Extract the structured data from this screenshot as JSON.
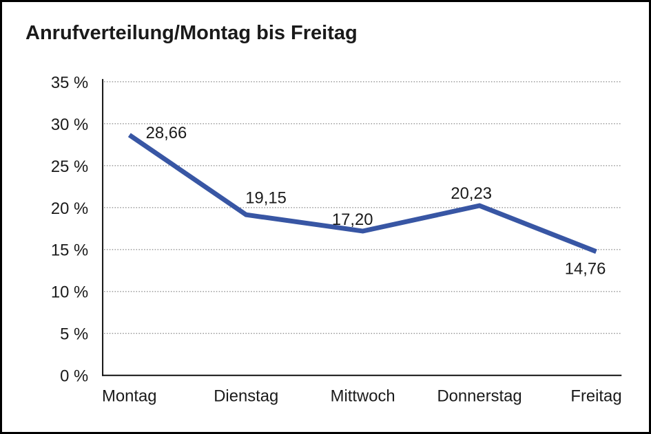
{
  "chart_data": {
    "type": "line",
    "title": "Anrufverteilung/Montag bis Freitag",
    "categories": [
      "Montag",
      "Dienstag",
      "Mittwoch",
      "Donnerstag",
      "Freitag"
    ],
    "series": [
      {
        "name": "Anrufverteilung",
        "values": [
          28.66,
          19.15,
          17.2,
          20.23,
          14.76
        ]
      }
    ],
    "point_labels": [
      "28,66",
      "19,15",
      "17,20",
      "20,23",
      "14,76"
    ],
    "xlabel": "",
    "ylabel": "",
    "ylim": [
      0,
      35
    ],
    "y_ticks": [
      0,
      5,
      10,
      15,
      20,
      25,
      30,
      35
    ],
    "y_tick_labels": [
      "0 %",
      "5 %",
      "10 %",
      "15 %",
      "20 %",
      "25 %",
      "30 %",
      "35 %"
    ],
    "grid": "horizontal-dotted",
    "legend_position": "none",
    "colors": {
      "line": "#3856A4",
      "text": "#1a1a1a",
      "axis": "#111111",
      "gridline": "#666666",
      "background": "#ffffff",
      "frame_border": "#000000"
    }
  }
}
